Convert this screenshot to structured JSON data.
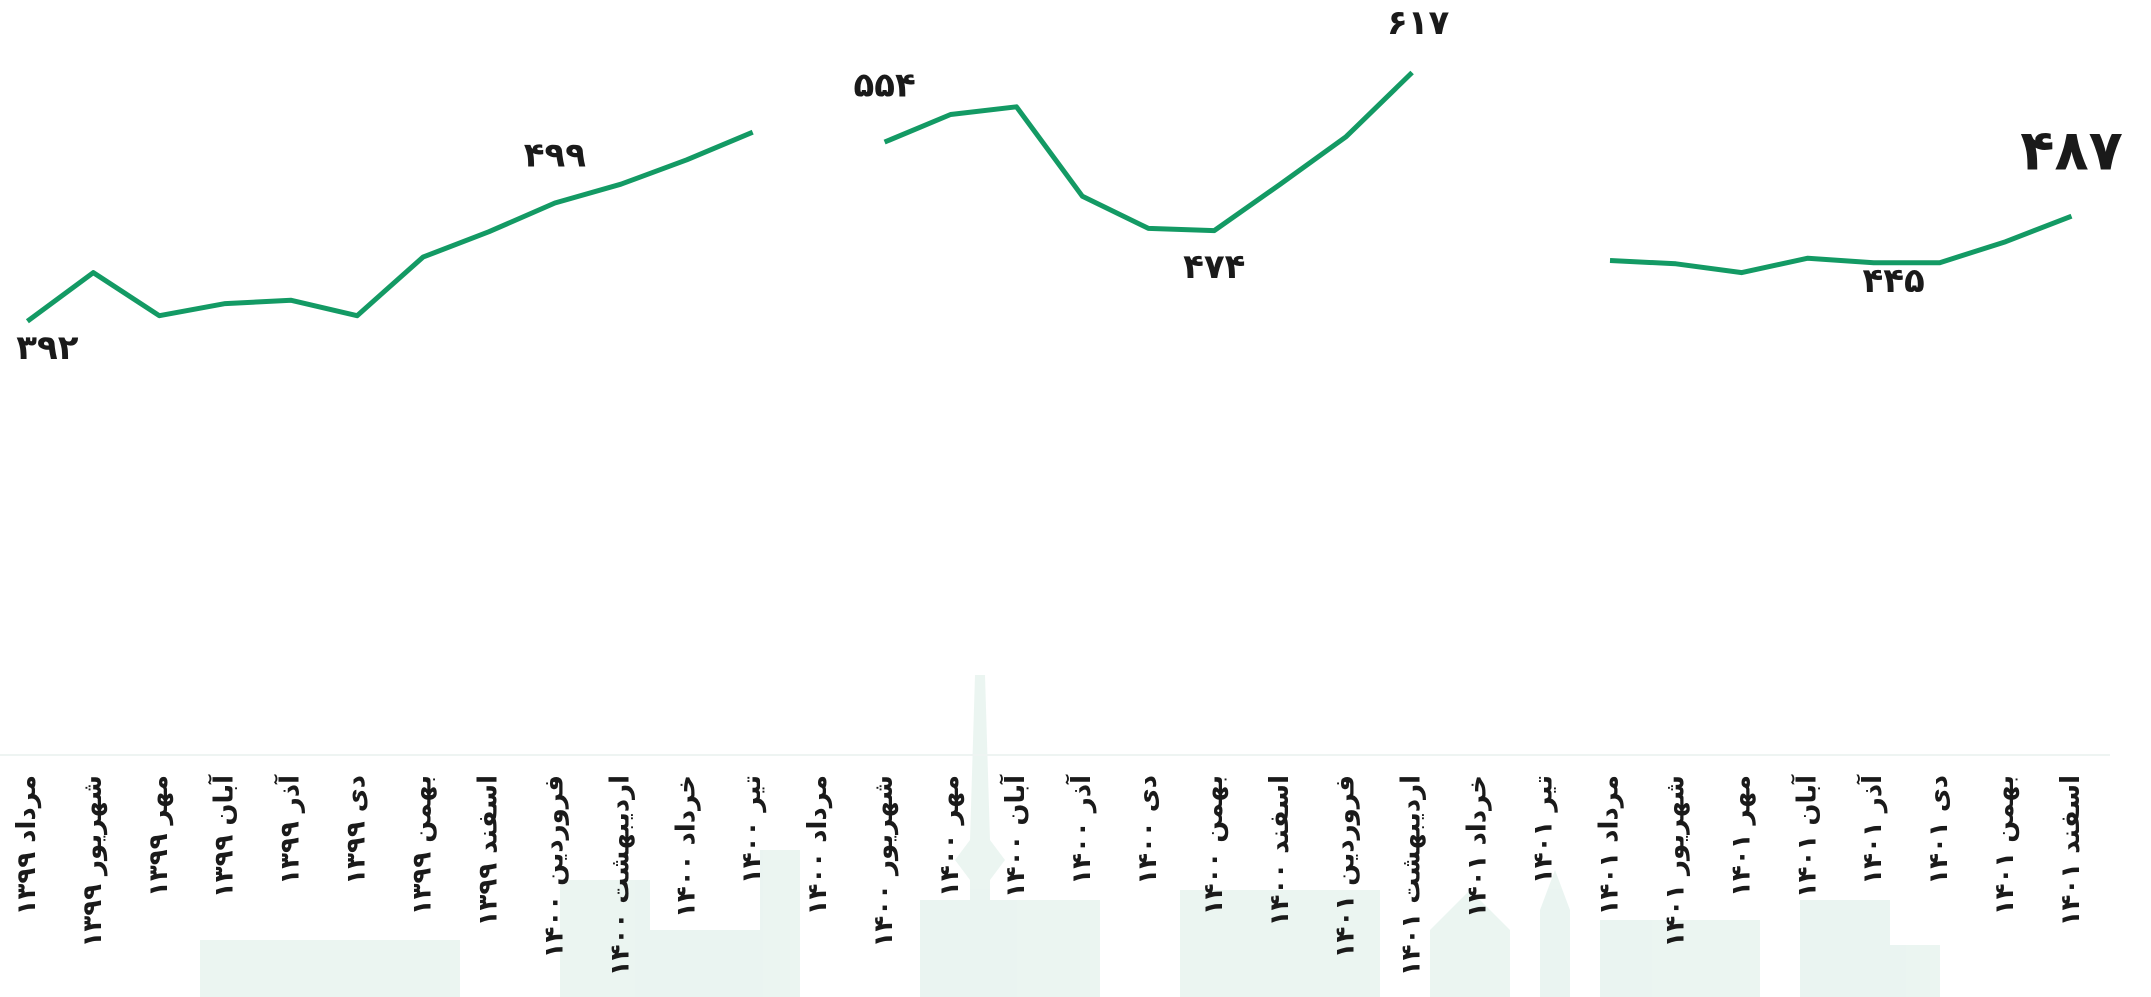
{
  "chart_data": {
    "type": "line",
    "categories": [
      "مرداد ۱۳۹۹",
      "شهریور ۱۳۹۹",
      "مهر ۱۳۹۹",
      "آبان ۱۳۹۹",
      "آذر ۱۳۹۹",
      "دی ۱۳۹۹",
      "بهمن ۱۳۹۹",
      "اسفند ۱۳۹۹",
      "فروردین ۱۴۰۰",
      "اردیبهشت ۱۴۰۰",
      "خرداد ۱۴۰۰",
      "تیر ۱۴۰۰",
      "مرداد ۱۴۰۰",
      "شهریور ۱۴۰۰",
      "مهر ۱۴۰۰",
      "آبان ۱۴۰۰",
      "آذر ۱۴۰۰",
      "دی ۱۴۰۰",
      "بهمن ۱۴۰۰",
      "اسفند ۱۴۰۰",
      "فروردین ۱۴۰۱",
      "اردیبهشت ۱۴۰۱",
      "خرداد ۱۴۰۱",
      "تیر ۱۴۰۱",
      "مرداد ۱۴۰۱",
      "شهریور ۱۴۰۱",
      "مهر ۱۴۰۱",
      "آبان ۱۴۰۱",
      "آذر ۱۴۰۱",
      "دی ۱۴۰۱",
      "بهمن ۱۴۰۱",
      "اسفند ۱۴۰۱"
    ],
    "values": [
      392,
      436,
      397,
      408,
      411,
      397,
      450,
      473,
      499,
      516,
      538,
      563,
      null,
      554,
      579,
      586,
      505,
      476,
      474,
      516,
      559,
      617,
      null,
      null,
      447,
      444,
      436,
      449,
      445,
      445,
      464,
      487
    ],
    "value_labels": [
      "۳۹۲",
      null,
      null,
      null,
      null,
      null,
      null,
      null,
      "۴۹۹",
      null,
      null,
      null,
      null,
      "۵۵۴",
      null,
      null,
      null,
      null,
      "۴۷۴",
      null,
      null,
      "۶۱۷",
      null,
      null,
      null,
      null,
      null,
      null,
      null,
      "۴۴۵",
      null,
      "۴۸۷"
    ],
    "color": "#139a64",
    "ylim": [
      300,
      650
    ]
  }
}
